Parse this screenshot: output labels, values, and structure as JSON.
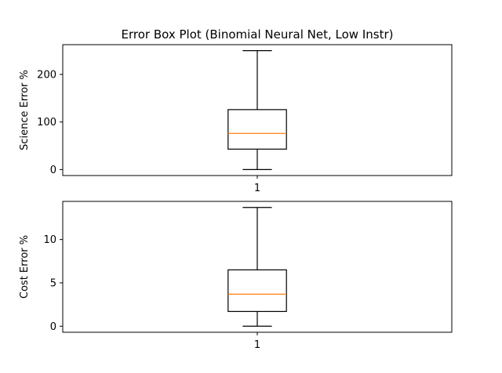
{
  "chart_data": {
    "type": "box",
    "title": "Error Box Plot (Binomial Neural Net, Low Instr)",
    "colors": {
      "box": "#000000",
      "median": "#ff7f0e",
      "background": "#ffffff"
    },
    "panels": [
      {
        "ylabel": "Science Error %",
        "xtick_labels": [
          "1"
        ],
        "yticks": [
          0,
          100,
          200
        ],
        "ylim": [
          -12.5,
          262.5
        ],
        "boxes": [
          {
            "category": "1",
            "whisker_low": 0,
            "q1": 43,
            "median": 76,
            "q3": 126,
            "whisker_high": 250
          }
        ]
      },
      {
        "ylabel": "Cost Error %",
        "xtick_labels": [
          "1"
        ],
        "yticks": [
          0,
          5,
          10
        ],
        "ylim": [
          -0.7,
          14.4
        ],
        "boxes": [
          {
            "category": "1",
            "whisker_low": 0,
            "q1": 1.7,
            "median": 3.7,
            "q3": 6.5,
            "whisker_high": 13.7
          }
        ]
      }
    ]
  }
}
